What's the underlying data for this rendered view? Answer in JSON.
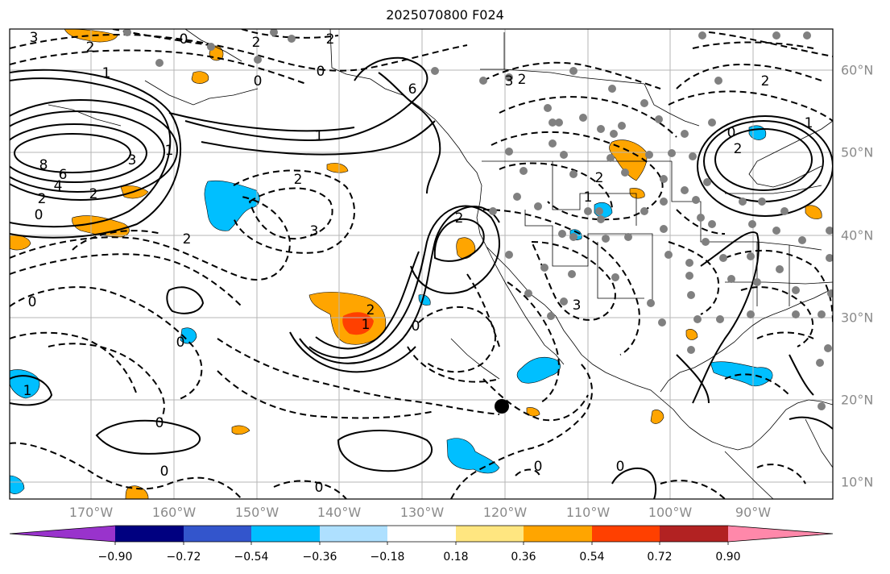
{
  "title": "2025070800 F024",
  "axes": {
    "longitude_labels": [
      "170°W",
      "160°W",
      "150°W",
      "140°W",
      "130°W",
      "120°W",
      "110°W",
      "100°W",
      "90°W"
    ],
    "latitude_labels": [
      "60°N",
      "50°N",
      "40°N",
      "30°N",
      "20°N",
      "10°N"
    ]
  },
  "colorbar": {
    "ticks": [
      "−0.90",
      "−0.72",
      "−0.54",
      "−0.36",
      "−0.18",
      "0.18",
      "0.36",
      "0.54",
      "0.72",
      "0.90"
    ],
    "colors": [
      "#9933cc",
      "#000080",
      "#3355cc",
      "#00bfff",
      "#aee0ff",
      "#ffffff",
      "#ffe680",
      "#ffa500",
      "#ff4000",
      "#b22222",
      "#ff88aa"
    ]
  },
  "contour_labels": [
    {
      "text": "3"
    },
    {
      "text": "2"
    },
    {
      "text": "1"
    },
    {
      "text": "0"
    },
    {
      "text": "8"
    },
    {
      "text": "6"
    },
    {
      "text": "4"
    },
    {
      "text": "2"
    },
    {
      "text": "0"
    },
    {
      "text": "1"
    },
    {
      "text": "2"
    },
    {
      "text": "3"
    },
    {
      "text": "2"
    },
    {
      "text": "2"
    },
    {
      "text": "0"
    },
    {
      "text": "1"
    },
    {
      "text": "0"
    },
    {
      "text": "3"
    },
    {
      "text": "2"
    },
    {
      "text": "2"
    },
    {
      "text": "6"
    },
    {
      "text": "3"
    },
    {
      "text": "2"
    },
    {
      "text": "1"
    },
    {
      "text": "2"
    },
    {
      "text": "2"
    },
    {
      "text": "2"
    },
    {
      "text": "1"
    },
    {
      "text": "3"
    },
    {
      "text": "0"
    },
    {
      "text": "0"
    },
    {
      "text": "0"
    },
    {
      "text": "1"
    },
    {
      "text": "0"
    },
    {
      "text": "0"
    },
    {
      "text": "0"
    },
    {
      "text": "2"
    },
    {
      "text": "1"
    },
    {
      "text": "2"
    },
    {
      "text": "0"
    },
    {
      "text": "0"
    },
    {
      "text": "0"
    }
  ],
  "legend_colors": {
    "positive_fill": "#ffa500",
    "positive_strong": "#ff4000",
    "negative_fill": "#00bfff",
    "station_dot": "#808080",
    "marker": "#000000"
  }
}
